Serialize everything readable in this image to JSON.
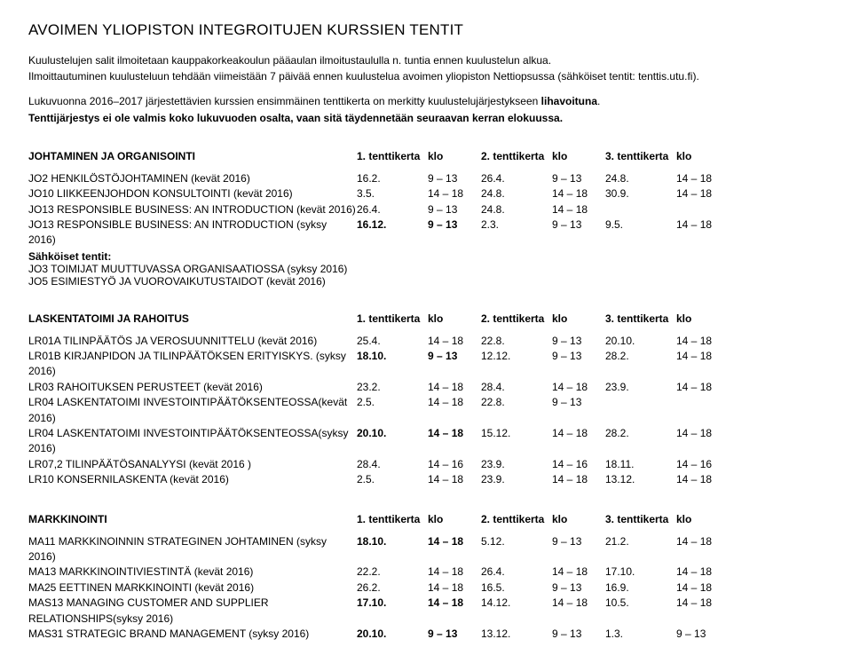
{
  "title": "AVOIMEN YLIOPISTON INTEGROITUJEN KURSSIEN TENTIT",
  "intro": {
    "p1": "Kuulustelujen salit ilmoitetaan kauppakorkeakoulun pääaulan ilmoitustaululla n. tuntia ennen kuulustelun alkua.",
    "p2": "Ilmoittautuminen kuulusteluun tehdään viimeistään 7 päivää ennen kuulustelua avoimen yliopiston Nettiopsussa (sähköiset tentit: tenttis.utu.fi).",
    "p3a": "Lukuvuonna 2016–2017 järjestettävien kurssien ensimmäinen tenttikerta on merkitty kuulustelujärjestykseen ",
    "p3b": "lihavoituna",
    "p3c": ".",
    "p4": "Tenttijärjestys ei ole valmis koko lukuvuoden osalta, vaan sitä täydennetään seuraavan kerran elokuussa."
  },
  "headers": {
    "t1": "1. tenttikerta",
    "t2": "2. tenttikerta",
    "t3": "3. tenttikerta",
    "klo": "klo"
  },
  "sections": [
    {
      "title": "JOHTAMINEN JA ORGANISOINTI",
      "rows": [
        {
          "name": "JO2 HENKILÖSTÖJOHTAMINEN (kevät 2016)",
          "d1": "16.2.",
          "k1": "9 – 13",
          "d2": "26.4.",
          "k2": "9 – 13",
          "d3": "24.8.",
          "k3": "14 – 18"
        },
        {
          "name": "JO10 LIIKKEENJOHDON KONSULTOINTI (kevät 2016)",
          "d1": "3.5.",
          "k1": "14 – 18",
          "d2": "24.8.",
          "k2": "14 – 18",
          "d3": "30.9.",
          "k3": "14 – 18"
        },
        {
          "name": "JO13 RESPONSIBLE BUSINESS: AN INTRODUCTION (kevät 2016)",
          "d1": "26.4.",
          "k1": "9 – 13",
          "d2": "24.8.",
          "k2": "14 – 18",
          "d3": "",
          "k3": ""
        },
        {
          "name": "JO13 RESPONSIBLE BUSINESS: AN INTRODUCTION (syksy 2016)",
          "d1": "16.12.",
          "k1": "9 – 13",
          "d1bold": true,
          "k1bold": true,
          "d2": "2.3.",
          "k2": "9 – 13",
          "d3": "9.5.",
          "k3": "14 – 18"
        }
      ],
      "footer": {
        "label": "Sähköiset tentit:",
        "lines": [
          "JO3 TOIMIJAT MUUTTUVASSA ORGANISAATIOSSA (syksy 2016)",
          "JO5 ESIMIESTYÖ JA VUOROVAIKUTUSTAIDOT (kevät 2016)"
        ]
      }
    },
    {
      "title": "LASKENTATOIMI JA RAHOITUS",
      "rows": [
        {
          "name": "LR01A TILINPÄÄTÖS JA VEROSUUNNITTELU (kevät 2016)",
          "d1": "25.4.",
          "k1": "14 – 18",
          "d2": "22.8.",
          "k2": "9 – 13",
          "d3": "20.10.",
          "k3": "14 – 18"
        },
        {
          "name": "LR01B KIRJANPIDON JA TILINPÄÄTÖKSEN ERITYISKYS. (syksy 2016)",
          "d1": "18.10.",
          "k1": "9 – 13",
          "d1bold": true,
          "k1bold": true,
          "d2": "12.12.",
          "k2": "9 – 13",
          "d3": "28.2.",
          "k3": "14 – 18"
        },
        {
          "name": "LR03 RAHOITUKSEN PERUSTEET (kevät 2016)",
          "d1": "23.2.",
          "k1": "14 – 18",
          "d2": "28.4.",
          "k2": "14 – 18",
          "d3": "23.9.",
          "k3": "14 – 18"
        },
        {
          "name": "LR04 LASKENTATOIMI INVESTOINTIPÄÄTÖKSENTEOSSA(kevät 2016)",
          "d1": "2.5.",
          "k1": "14 – 18",
          "d2": "22.8.",
          "k2": "9 – 13",
          "d3": "",
          "k3": ""
        },
        {
          "name": "LR04 LASKENTATOIMI INVESTOINTIPÄÄTÖKSENTEOSSA(syksy 2016)",
          "d1": "20.10.",
          "k1": "14 – 18",
          "d1bold": true,
          "k1bold": true,
          "d2": "15.12.",
          "k2": "14 – 18",
          "d3": "28.2.",
          "k3": "14 – 18"
        },
        {
          "name": "LR07,2 TILINPÄÄTÖSANALYYSI (kevät 2016 )",
          "d1": "28.4.",
          "k1": "14 – 16",
          "d2": "23.9.",
          "k2": "14 – 16",
          "d3": "18.11.",
          "k3": "14 – 16"
        },
        {
          "name": "LR10 KONSERNILASKENTA (kevät 2016)",
          "d1": "2.5.",
          "k1": "14 – 18",
          "d2": "23.9.",
          "k2": "14 – 18",
          "d3": "13.12.",
          "k3": "14 – 18"
        }
      ]
    },
    {
      "title": "MARKKINOINTI",
      "rows": [
        {
          "name": "MA11 MARKKINOINNIN STRATEGINEN JOHTAMINEN (syksy 2016)",
          "d1": "18.10.",
          "k1": "14 – 18",
          "d1bold": true,
          "k1bold": true,
          "d2": "5.12.",
          "k2": "9 – 13",
          "d3": "21.2.",
          "k3": "14 – 18"
        },
        {
          "name": "MA13 MARKKINOINTIVIESTINTÄ (kevät 2016)",
          "d1": "22.2.",
          "k1": "14 – 18",
          "d2": "26.4.",
          "k2": "14 – 18",
          "d3": "17.10.",
          "k3": "14 – 18"
        },
        {
          "name": "MA25 EETTINEN MARKKINOINTI (kevät 2016)",
          "d1": "26.2.",
          "k1": "14 – 18",
          "d2": "16.5.",
          "k2": "9 – 13",
          "d3": "16.9.",
          "k3": "14 – 18"
        },
        {
          "name": "MAS13 MANAGING CUSTOMER AND SUPPLIER RELATIONSHIPS(syksy 2016)",
          "d1": "17.10.",
          "k1": "14 – 18",
          "d1bold": true,
          "k1bold": true,
          "d2": "14.12.",
          "k2": "14 – 18",
          "d3": "10.5.",
          "k3": "14 – 18"
        },
        {
          "name": "MAS31 STRATEGIC BRAND MANAGEMENT (syksy 2016)",
          "d1": "20.10.",
          "k1": "9 – 13",
          "d1bold": true,
          "k1bold": true,
          "d2": "13.12.",
          "k2": "9 – 13",
          "d3": "1.3.",
          "k3": "9 – 13"
        }
      ]
    }
  ]
}
